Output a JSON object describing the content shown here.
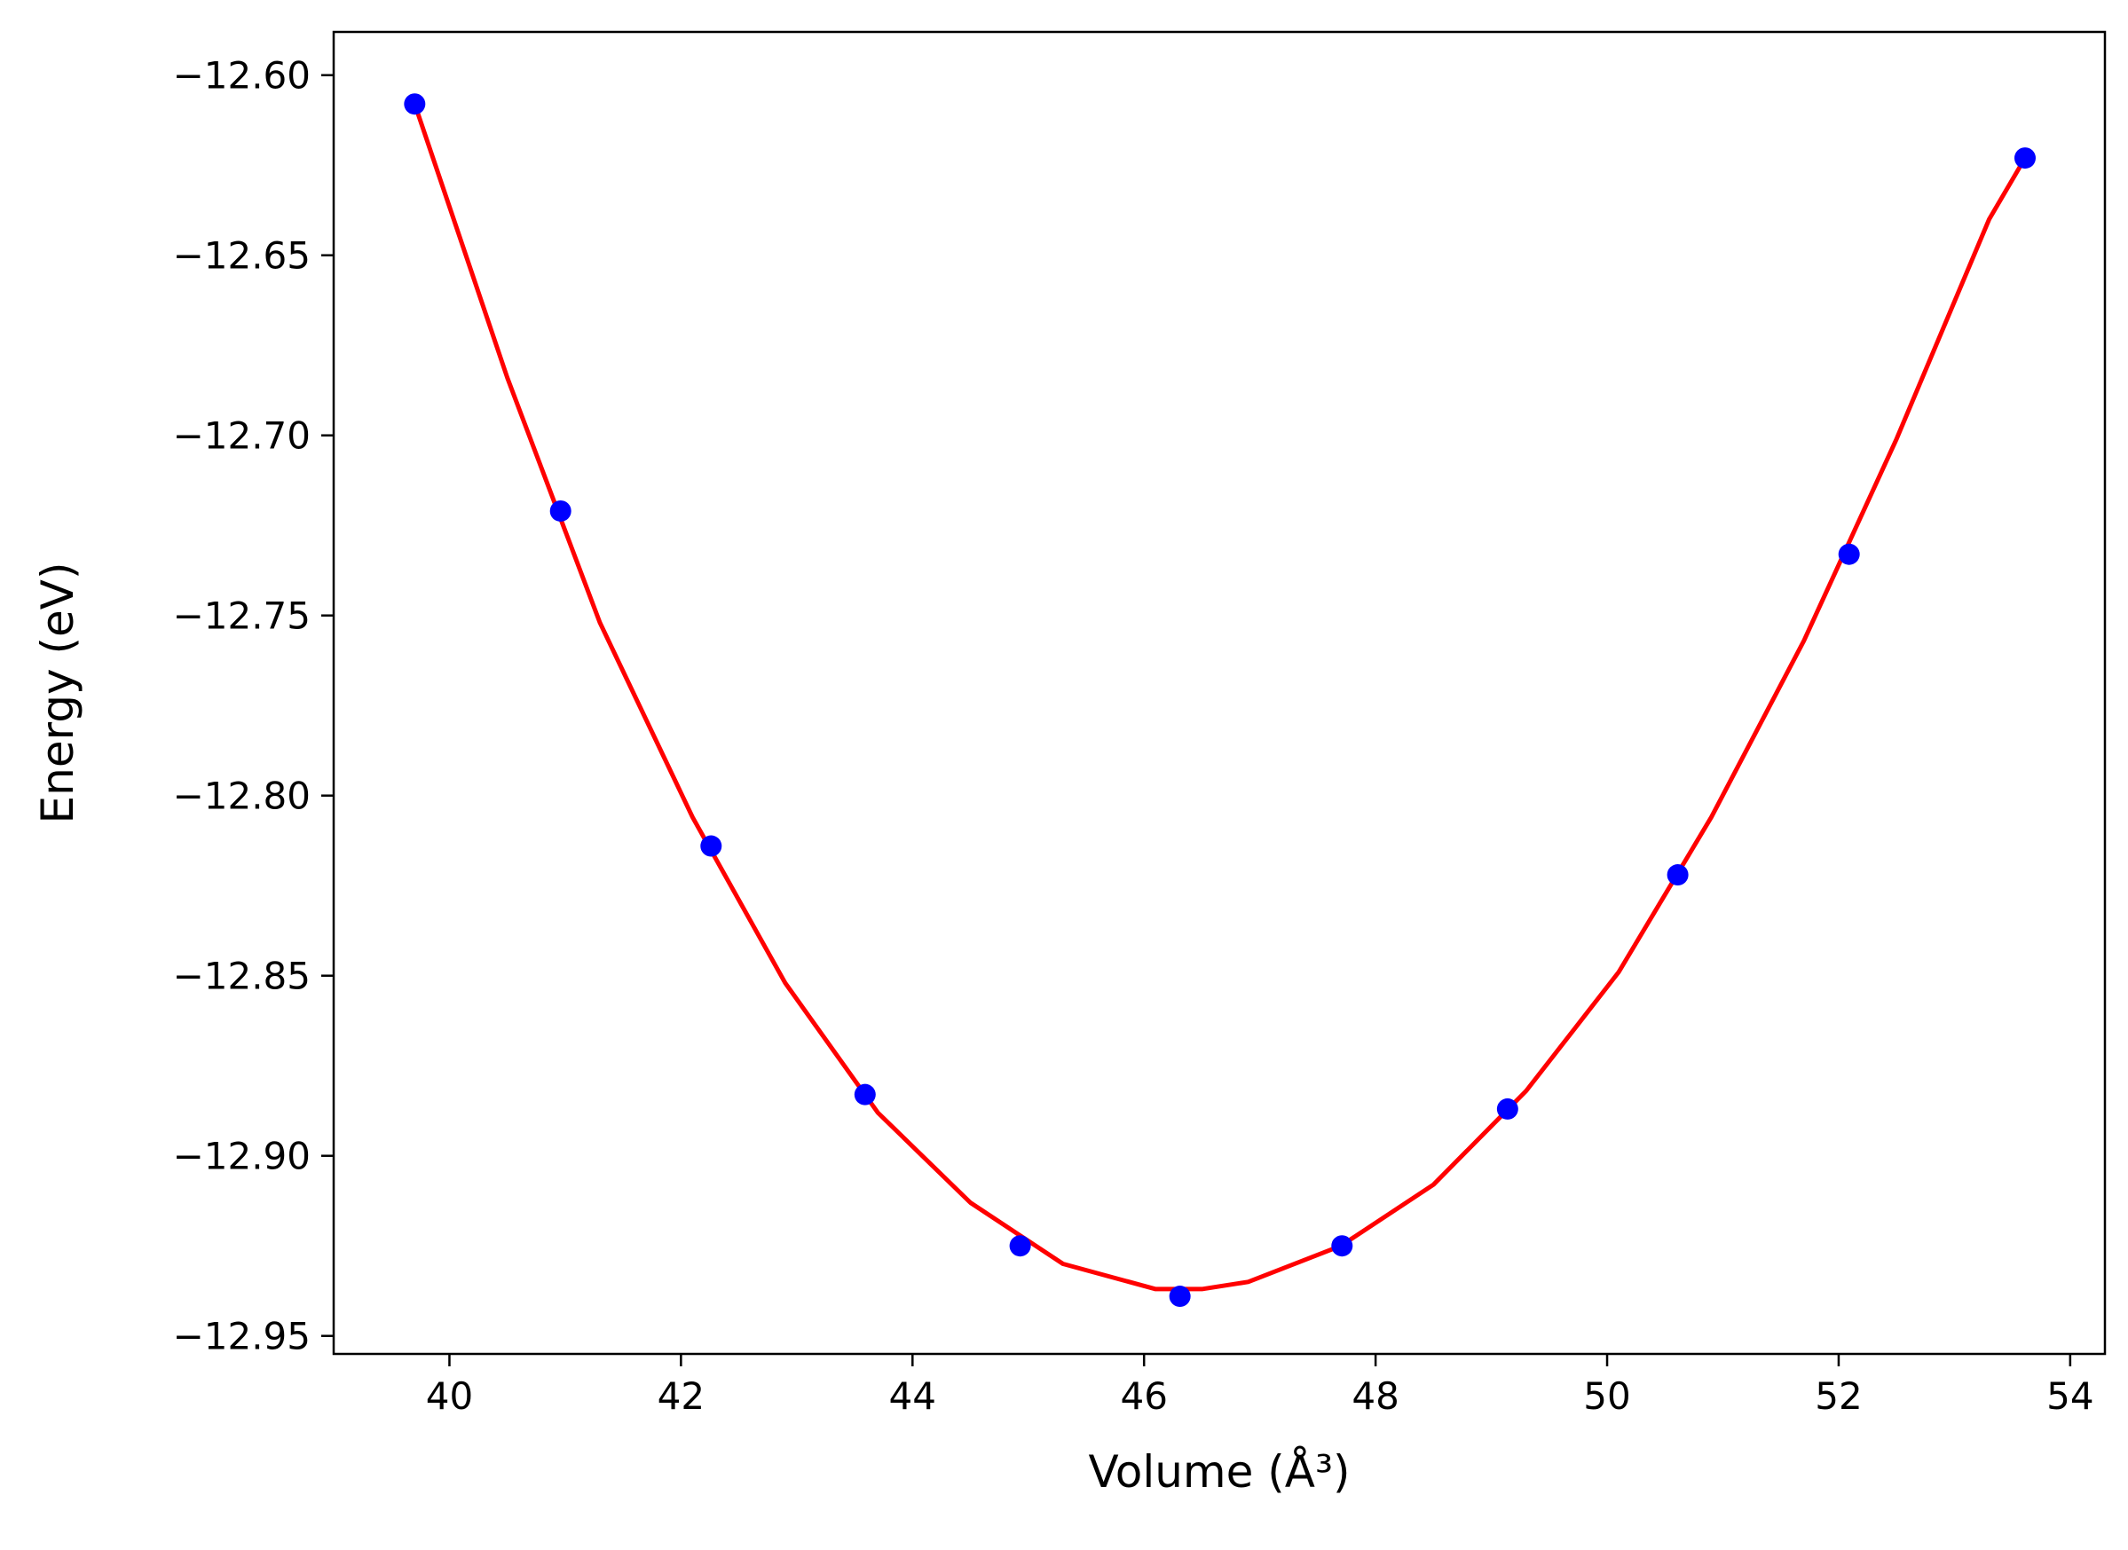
{
  "chart_data": {
    "type": "scatter",
    "xlabel": "Volume (Å³)",
    "ylabel": "Energy (eV)",
    "xlim": [
      39.0,
      54.3
    ],
    "ylim": [
      -12.955,
      -12.588
    ],
    "grid": false,
    "x_ticks": [
      40,
      42,
      44,
      46,
      48,
      50,
      52,
      54
    ],
    "x_tick_labels": [
      "40",
      "42",
      "44",
      "46",
      "48",
      "50",
      "52",
      "54"
    ],
    "y_ticks": [
      -12.6,
      -12.65,
      -12.7,
      -12.75,
      -12.8,
      -12.85,
      -12.9,
      -12.95
    ],
    "y_tick_labels": [
      "−12.60",
      "−12.65",
      "−12.70",
      "−12.75",
      "−12.80",
      "−12.85",
      "−12.90",
      "−12.95"
    ],
    "series": [
      {
        "type": "scatter",
        "color": "#0000ff",
        "x": [
          39.7,
          40.96,
          42.26,
          43.59,
          44.93,
          46.31,
          47.71,
          49.14,
          50.61,
          52.09,
          53.61
        ],
        "y": [
          -12.608,
          -12.721,
          -12.814,
          -12.883,
          -12.925,
          -12.939,
          -12.925,
          -12.887,
          -12.822,
          -12.733,
          -12.623
        ]
      },
      {
        "type": "line",
        "color": "#ff0000",
        "x": [
          39.7,
          40.5,
          41.3,
          42.1,
          42.9,
          43.7,
          44.5,
          45.3,
          46.1,
          46.5,
          46.9,
          47.7,
          48.5,
          49.3,
          50.1,
          50.9,
          51.7,
          52.5,
          53.3,
          53.61
        ],
        "y": [
          -12.608,
          -12.684,
          -12.752,
          -12.806,
          -12.852,
          -12.888,
          -12.913,
          -12.93,
          -12.937,
          -12.937,
          -12.935,
          -12.925,
          -12.908,
          -12.882,
          -12.849,
          -12.806,
          -12.757,
          -12.701,
          -12.64,
          -12.623
        ]
      }
    ]
  }
}
